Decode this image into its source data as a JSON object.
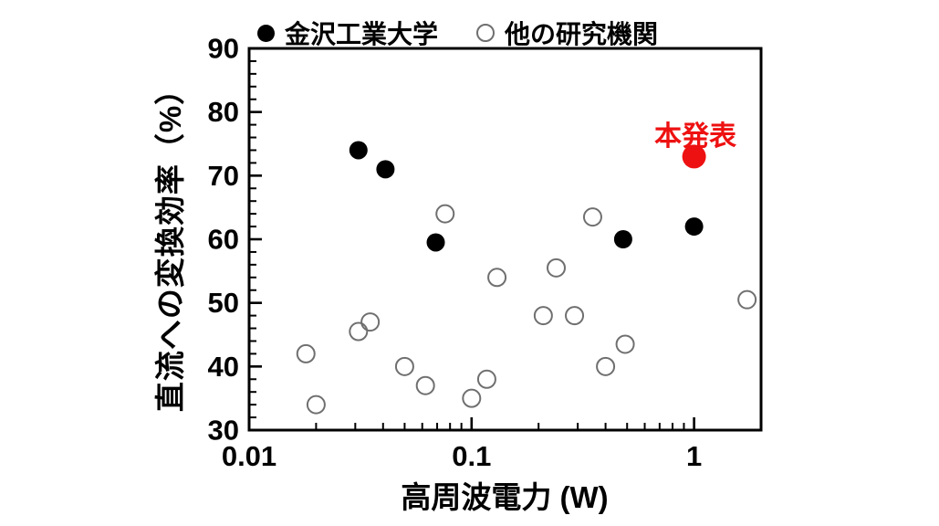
{
  "figure": {
    "background": "#ffffff"
  },
  "legend": {
    "items": [
      {
        "label": "金沢工業大学",
        "marker": "filled-circle-icon",
        "color": "#000000"
      },
      {
        "label": "他の研究機関",
        "marker": "open-circle-icon",
        "color": "#6f6f6f"
      }
    ]
  },
  "annotation": {
    "text": "本発表",
    "color": "#ee1111"
  },
  "chart_data": {
    "type": "scatter",
    "title": "",
    "xlabel": "高周波電力 (W)",
    "ylabel": "直流への変換効率（%）",
    "x_scale": "log",
    "xlim": [
      0.01,
      2
    ],
    "ylim": [
      30,
      90
    ],
    "x_ticks": [
      0.01,
      0.1,
      1
    ],
    "x_tick_labels": [
      "0.01",
      "0.1",
      "1"
    ],
    "y_ticks": [
      30,
      40,
      50,
      60,
      70,
      80,
      90
    ],
    "y_minor_step": 2,
    "grid": false,
    "legend_position": "top",
    "series": [
      {
        "name": "金沢工業大学",
        "marker": "filled-circle",
        "color": "#000000",
        "radius": 10,
        "points": [
          [
            0.031,
            74
          ],
          [
            0.041,
            71
          ],
          [
            0.069,
            59.5
          ],
          [
            0.48,
            60
          ],
          [
            1.0,
            62
          ]
        ]
      },
      {
        "name": "他の研究機関",
        "marker": "open-circle",
        "color": "#6f6f6f",
        "radius": 9.5,
        "points": [
          [
            0.018,
            42
          ],
          [
            0.02,
            34
          ],
          [
            0.031,
            45.5
          ],
          [
            0.035,
            47
          ],
          [
            0.05,
            40
          ],
          [
            0.062,
            37
          ],
          [
            0.076,
            64
          ],
          [
            0.1,
            35
          ],
          [
            0.117,
            38
          ],
          [
            0.13,
            54
          ],
          [
            0.21,
            48
          ],
          [
            0.24,
            55.5
          ],
          [
            0.29,
            48
          ],
          [
            0.35,
            63.5
          ],
          [
            0.4,
            40
          ],
          [
            0.49,
            43.5
          ],
          [
            1.73,
            50.5
          ]
        ]
      },
      {
        "name": "本発表",
        "marker": "filled-circle",
        "color": "#ee1111",
        "radius": 13,
        "points": [
          [
            1.0,
            73
          ]
        ]
      }
    ]
  }
}
